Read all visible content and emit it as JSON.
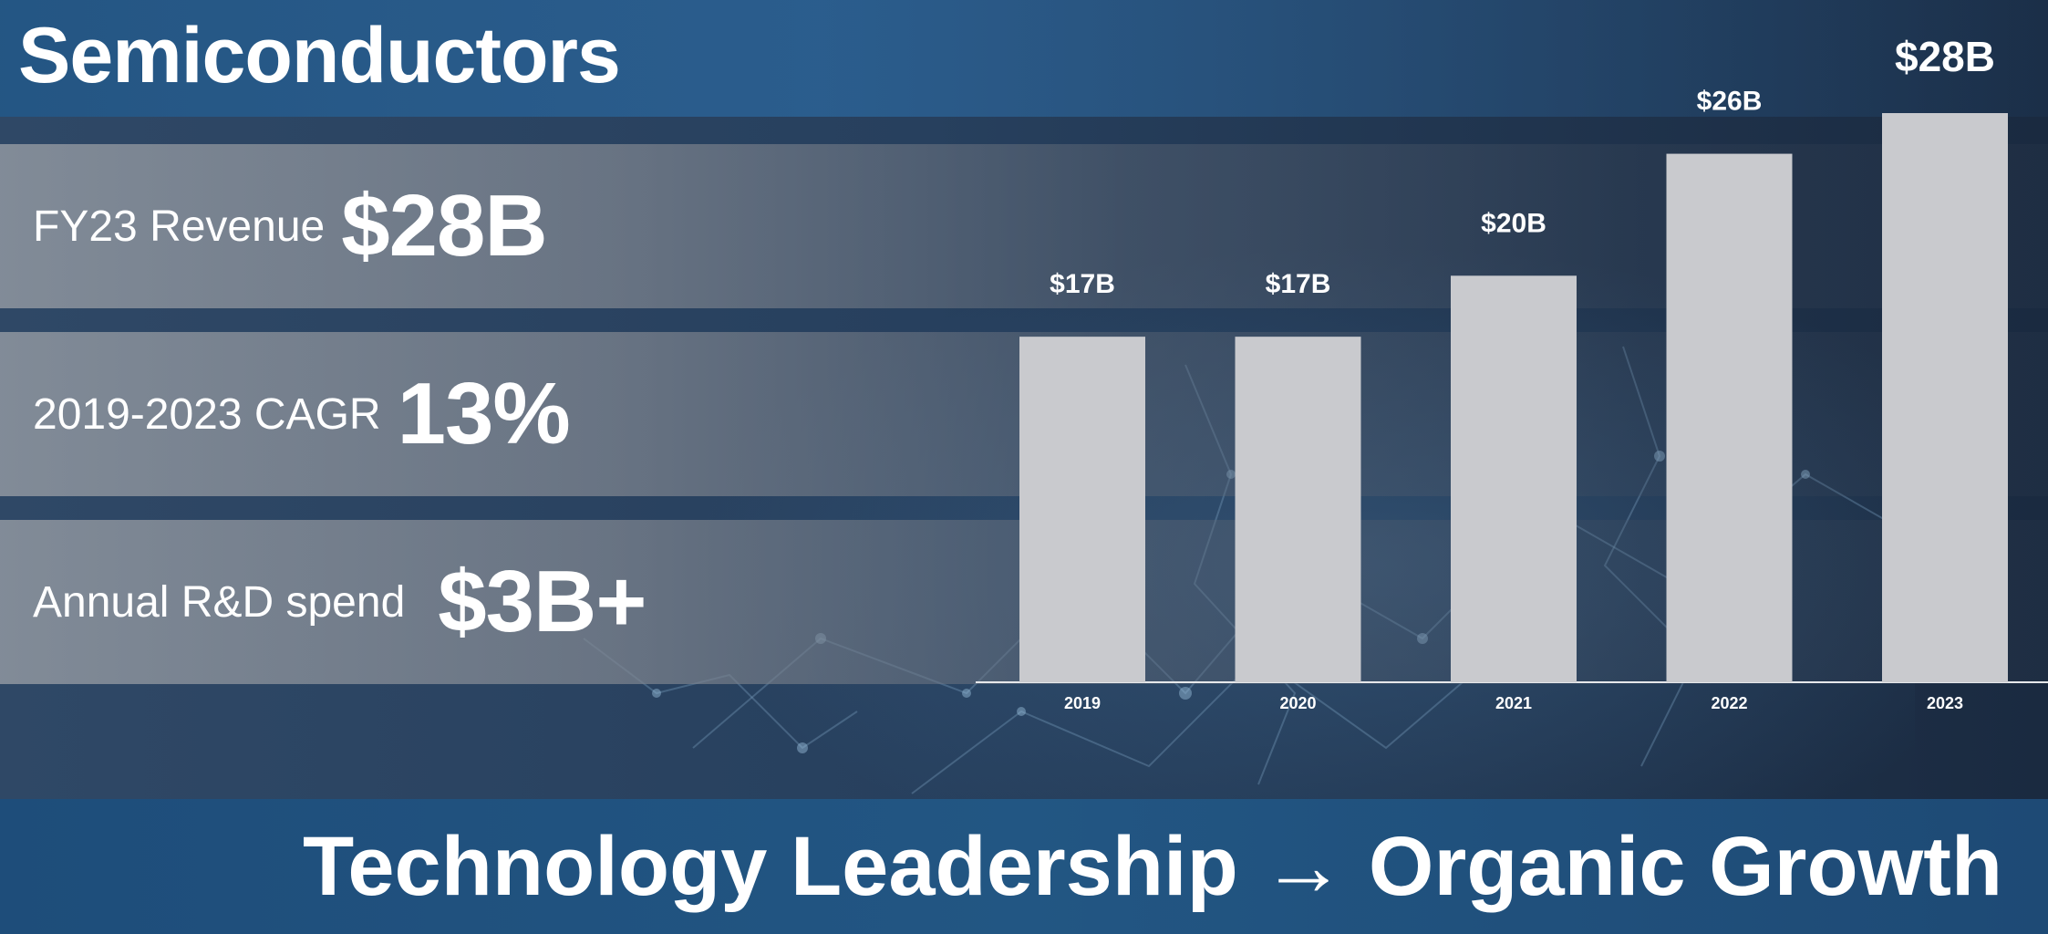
{
  "header": {
    "title": "Semiconductors"
  },
  "stats": [
    {
      "label": "FY23 Revenue",
      "value": "$28B"
    },
    {
      "label": "2019-2023 CAGR",
      "value": "13%"
    },
    {
      "label": "Annual R&D spend",
      "value": "$3B+"
    }
  ],
  "chart_data": {
    "type": "bar",
    "categories": [
      "2019",
      "2020",
      "2021",
      "2022",
      "2023"
    ],
    "values": [
      17,
      17,
      20,
      26,
      28
    ],
    "data_labels": [
      "$17B",
      "$17B",
      "$20B",
      "$26B",
      "$28B"
    ],
    "title": "",
    "xlabel": "",
    "ylabel": "",
    "ylim": [
      0,
      28
    ],
    "grid": false,
    "bar_color": "#c9cace"
  },
  "footer": {
    "tagline": "Technology Leadership → Organic Growth"
  },
  "colors": {
    "header_blue": "#245684",
    "footer_blue": "#225683",
    "text": "#ffffff"
  }
}
